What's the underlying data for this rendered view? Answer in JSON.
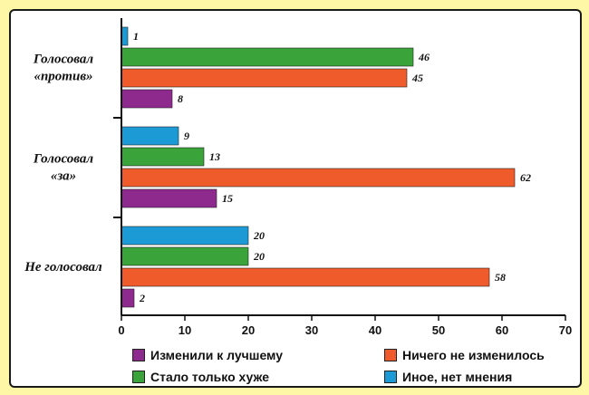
{
  "chart_data": {
    "type": "bar",
    "orientation": "horizontal",
    "title": "",
    "xlabel": "",
    "ylabel": "",
    "xlim": [
      0,
      70
    ],
    "x_ticks": [
      0,
      10,
      20,
      30,
      40,
      50,
      60,
      70
    ],
    "grid": false,
    "legend_position": "bottom",
    "categories": [
      [
        "Голосовал",
        "«против»"
      ],
      [
        "Голосовал",
        "«за»"
      ],
      [
        "Не голосовал"
      ]
    ],
    "series_order_top_to_bottom": [
      "Иное, нет мнения",
      "Стало только хуже",
      "Ничего не изменилось",
      "Изменили к лучшему"
    ],
    "series": [
      {
        "name": "Изменили к лучшему",
        "color": "#8e2a8e",
        "values": [
          8,
          15,
          2
        ]
      },
      {
        "name": "Ничего не изменилось",
        "color": "#ef5b2b",
        "values": [
          45,
          62,
          58
        ]
      },
      {
        "name": "Стало только хуже",
        "color": "#3aa43a",
        "values": [
          46,
          13,
          20
        ]
      },
      {
        "name": "Иное, нет мнения",
        "color": "#1b9ad6",
        "values": [
          1,
          9,
          20
        ]
      }
    ]
  }
}
